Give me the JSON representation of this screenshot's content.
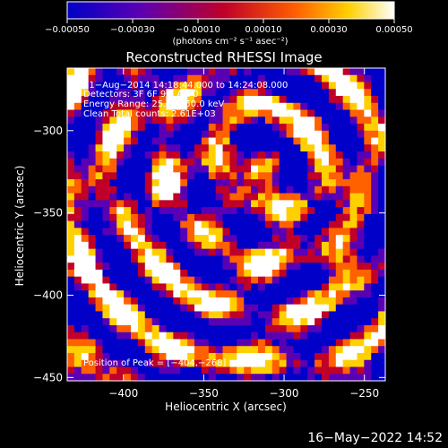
{
  "chart_data": {
    "type": "heatmap",
    "title": "Reconstructed RHESSI Image",
    "xlabel": "Heliocentric X (arcsec)",
    "ylabel": "Heliocentric Y (arcsec)",
    "xlim": [
      -435,
      -237
    ],
    "ylim": [
      -452,
      -262
    ],
    "xticks": [
      -400,
      -350,
      -300,
      -250
    ],
    "yticks": [
      -300,
      -350,
      -400,
      -450
    ],
    "xtick_labels": [
      "−400",
      "−350",
      "−300",
      "−250"
    ],
    "ytick_labels": [
      "−300",
      "−350",
      "−400",
      "−450"
    ],
    "colorbar": {
      "range": [
        -0.0005,
        0.0005
      ],
      "ticks": [
        -0.0005,
        -0.0003,
        -0.0001,
        0.0001,
        0.0003,
        0.0005
      ],
      "tick_labels": [
        "−0.00050",
        "−0.00030",
        "−0.00010",
        "0.00010",
        "0.00030",
        "0.00050"
      ],
      "units": "(photons cm⁻² s⁻¹ asec⁻²)",
      "colors": [
        "#0000c8",
        "#5a00b4",
        "#c00028",
        "#ff6000",
        "#ffd000",
        "#ffffff"
      ]
    },
    "annotations": {
      "line1": "31−Aug−2014 14:18:44.000 to 14:24:08.000",
      "line2": "Detectors: 3F 6F 9F, Att 0",
      "line3": "Energy Range: 25.0 − 50.0 keV",
      "line4": "Clean     Total counts: 2.61E+03",
      "peak": "Position of Peak = [−404,−268]"
    },
    "peak_position": [
      -404,
      -268
    ],
    "grid": false
  },
  "footer": {
    "timestamp": "16−May−2022 14:52"
  }
}
